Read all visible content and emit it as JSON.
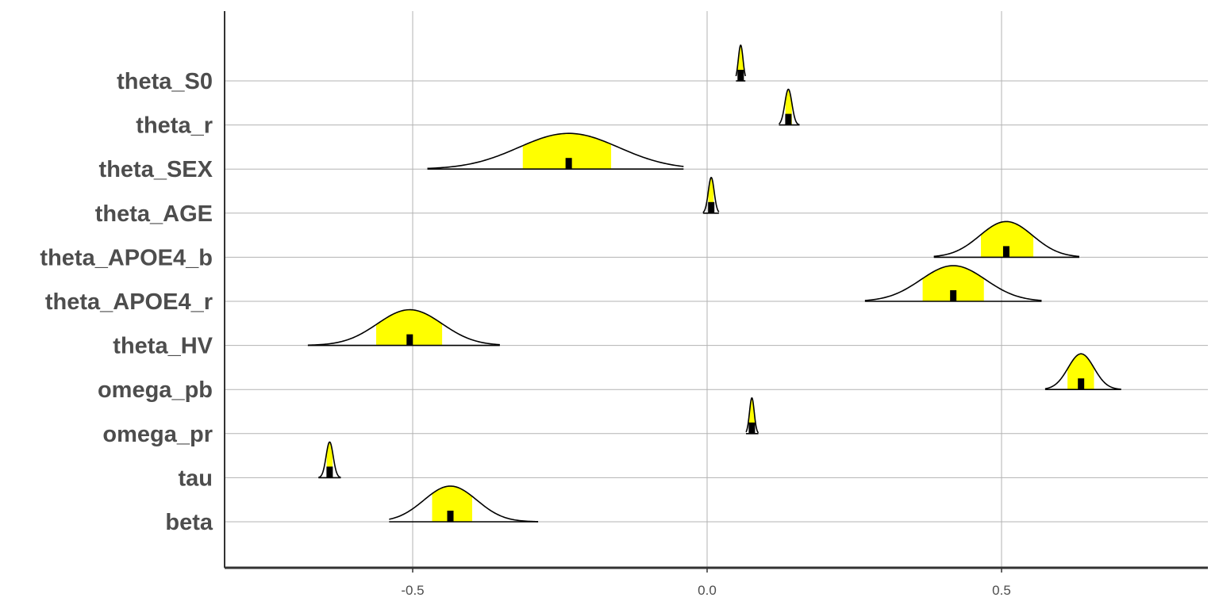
{
  "chart_data": {
    "type": "ridgeline-density",
    "title": "",
    "xlabel": "",
    "ylabel": "",
    "xlim": [
      -0.82,
      0.85
    ],
    "x_ticks": [
      -0.5,
      0.0,
      0.5
    ],
    "x_tick_labels": [
      "-0.5",
      "0.0",
      "0.5"
    ],
    "grid": true,
    "colors": {
      "interval_fill": "#ffff00",
      "outline": "#000000",
      "median": "#000000",
      "grid": "#b3b3b3"
    },
    "parameters": [
      {
        "name": "theta_S0",
        "median": 0.057,
        "interval": [
          0.052,
          0.062
        ],
        "range": [
          0.049,
          0.065
        ],
        "sd": 0.004
      },
      {
        "name": "theta_r",
        "median": 0.138,
        "interval": [
          0.133,
          0.144
        ],
        "range": [
          0.122,
          0.157
        ],
        "sd": 0.006
      },
      {
        "name": "theta_SEX",
        "median": -0.235,
        "interval": [
          -0.313,
          -0.163
        ],
        "range": [
          -0.475,
          -0.04
        ],
        "sd": 0.085
      },
      {
        "name": "theta_AGE",
        "median": 0.007,
        "interval": [
          0.002,
          0.011
        ],
        "range": [
          -0.007,
          0.02
        ],
        "sd": 0.005
      },
      {
        "name": "theta_APOE4_b",
        "median": 0.508,
        "interval": [
          0.465,
          0.554
        ],
        "range": [
          0.385,
          0.632
        ],
        "sd": 0.045
      },
      {
        "name": "theta_APOE4_r",
        "median": 0.418,
        "interval": [
          0.366,
          0.47
        ],
        "range": [
          0.268,
          0.568
        ],
        "sd": 0.055
      },
      {
        "name": "theta_HV",
        "median": -0.505,
        "interval": [
          -0.562,
          -0.45
        ],
        "range": [
          -0.678,
          -0.352
        ],
        "sd": 0.055
      },
      {
        "name": "omega_pb",
        "median": 0.635,
        "interval": [
          0.612,
          0.657
        ],
        "range": [
          0.574,
          0.703
        ],
        "sd": 0.022
      },
      {
        "name": "omega_pr",
        "median": 0.076,
        "interval": [
          0.071,
          0.081
        ],
        "range": [
          0.066,
          0.087
        ],
        "sd": 0.004
      },
      {
        "name": "tau",
        "median": -0.641,
        "interval": [
          -0.646,
          -0.636
        ],
        "range": [
          -0.66,
          -0.622
        ],
        "sd": 0.006
      },
      {
        "name": "beta",
        "median": -0.436,
        "interval": [
          -0.467,
          -0.399
        ],
        "range": [
          -0.54,
          -0.287
        ],
        "sd": 0.045
      }
    ]
  }
}
